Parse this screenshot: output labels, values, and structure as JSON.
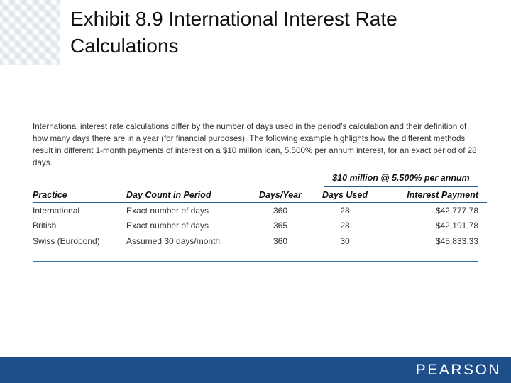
{
  "title": "Exhibit 8.9  International Interest Rate Calculations",
  "intro": "International interest rate calculations differ by the number of days used in the period’s calculation and their definition of how many days there are in a year (for financial purposes). The following example highlights how the different methods result in different 1-month payments of interest on a $10 million loan, 5.500% per annum interest, for an exact period of 28 days.",
  "table": {
    "group_header": "$10 million @ 5.500% per annum",
    "columns": [
      "Practice",
      "Day Count in Period",
      "Days/Year",
      "Days Used",
      "Interest Payment"
    ],
    "rows": [
      [
        "International",
        "Exact number of days",
        "360",
        "28",
        "$42,777.78"
      ],
      [
        "British",
        "Exact number of days",
        "365",
        "28",
        "$42,191.78"
      ],
      [
        "Swiss (Eurobond)",
        "Assumed 30 days/month",
        "360",
        "30",
        "$45,833.33"
      ]
    ]
  },
  "footer": {
    "logo": "PEARSON"
  },
  "colors": {
    "footer_bar": "#1f4f8b",
    "rule": "#2a5d8f"
  }
}
